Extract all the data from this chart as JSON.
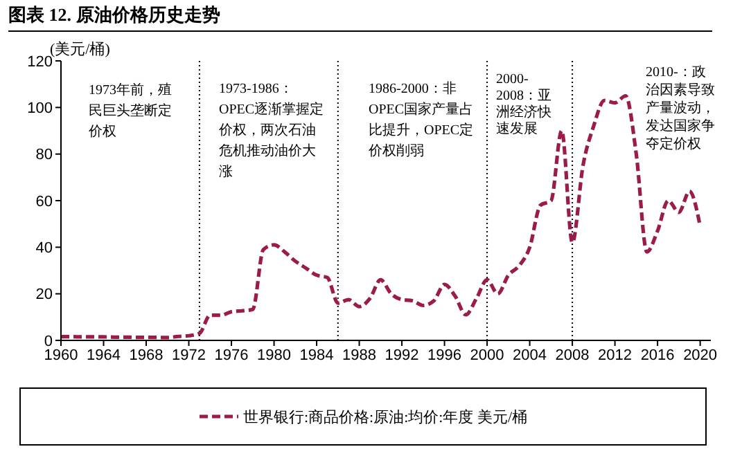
{
  "chart_data": {
    "type": "line",
    "title": "图表 12. 原油价格历史走势",
    "ylabel": "(美元/桶)",
    "x": [
      1960,
      1961,
      1962,
      1963,
      1964,
      1965,
      1966,
      1967,
      1968,
      1969,
      1970,
      1971,
      1972,
      1973,
      1974,
      1975,
      1976,
      1977,
      1978,
      1979,
      1980,
      1981,
      1982,
      1983,
      1984,
      1985,
      1986,
      1987,
      1988,
      1989,
      1990,
      1991,
      1992,
      1993,
      1994,
      1995,
      1996,
      1997,
      1998,
      1999,
      2000,
      2001,
      2002,
      2003,
      2004,
      2005,
      2006,
      2007,
      2008,
      2009,
      2010,
      2011,
      2012,
      2013,
      2014,
      2015,
      2016,
      2017,
      2018,
      2019,
      2020
    ],
    "series": [
      {
        "name": "世界银行:商品价格:原油:均价:年度 美元/桶",
        "color": "#9b1b4a",
        "values": [
          1.6,
          1.6,
          1.5,
          1.5,
          1.5,
          1.4,
          1.4,
          1.3,
          1.3,
          1.3,
          1.2,
          1.7,
          2,
          3,
          10.8,
          10.8,
          12.3,
          12.7,
          13.3,
          39,
          41,
          38,
          34,
          31,
          28,
          27,
          16,
          17.5,
          14.5,
          18,
          26,
          20,
          17.5,
          17,
          15,
          17,
          24,
          19,
          11,
          18,
          26,
          20,
          28,
          32,
          40,
          58,
          60,
          90,
          42,
          75,
          92,
          103,
          102,
          105,
          80,
          38,
          47,
          60,
          55,
          64,
          49
        ]
      }
    ],
    "xlim": [
      1960,
      2021
    ],
    "xticks": [
      1960,
      1964,
      1968,
      1972,
      1976,
      1980,
      1984,
      1988,
      1992,
      1996,
      2000,
      2004,
      2008,
      2012,
      2016,
      2020
    ],
    "ylim": [
      0,
      120
    ],
    "yticks": [
      0,
      20,
      40,
      60,
      80,
      100,
      120
    ],
    "grid": false,
    "legend": "bottom",
    "marker": "none",
    "line_style": "dashed",
    "ref_lines": [
      {
        "axis": "x",
        "value": 1973,
        "line_style": "dotted",
        "color": "#000000"
      },
      {
        "axis": "x",
        "value": 1986,
        "line_style": "dotted",
        "color": "#000000"
      },
      {
        "axis": "x",
        "value": 2000,
        "line_style": "dotted",
        "color": "#000000"
      },
      {
        "axis": "x",
        "value": 2008,
        "line_style": "dotted",
        "color": "#000000"
      }
    ],
    "annotations": [
      "1973年前，殖民巨头垄断定价权",
      "1973-1986：OPEC逐渐掌握定价权，两次石油危机推动油价大涨",
      "1986-2000：非OPEC国家产量占比提升，OPEC定价权削弱",
      "2000-2008：亚洲经济快速发展",
      "2010-：政治因素导致产量波动，发达国家争夺定价权"
    ]
  }
}
